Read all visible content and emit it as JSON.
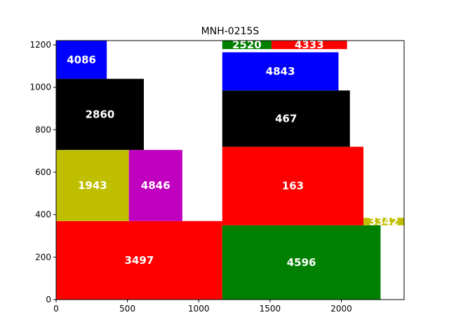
{
  "chart_data": {
    "type": "bar",
    "title": "MNH-0215S",
    "xlabel": "",
    "ylabel": "",
    "xlim": [
      0,
      2440
    ],
    "ylim": [
      0,
      1220
    ],
    "xticks": [
      0,
      500,
      1000,
      1500,
      2000
    ],
    "yticks": [
      0,
      200,
      400,
      600,
      800,
      1000,
      1200
    ],
    "grid": false,
    "legend": "none",
    "rects": [
      {
        "label": "3497",
        "x": 0,
        "y": 0,
        "w": 1165,
        "h": 370,
        "color": "#ff0000"
      },
      {
        "label": "4596",
        "x": 1165,
        "y": 0,
        "w": 1110,
        "h": 350,
        "color": "#008000"
      },
      {
        "label": "3342",
        "x": 2155,
        "y": 350,
        "w": 285,
        "h": 35,
        "color": "#bfbf00"
      },
      {
        "label": "1943",
        "x": 0,
        "y": 370,
        "w": 510,
        "h": 335,
        "color": "#bfbf00"
      },
      {
        "label": "4846",
        "x": 510,
        "y": 370,
        "w": 375,
        "h": 335,
        "color": "#bf00bf"
      },
      {
        "label": "163",
        "x": 1165,
        "y": 350,
        "w": 990,
        "h": 370,
        "color": "#ff0000"
      },
      {
        "label": "2860",
        "x": 0,
        "y": 705,
        "w": 615,
        "h": 335,
        "color": "#000000"
      },
      {
        "label": "467",
        "x": 1165,
        "y": 720,
        "w": 895,
        "h": 265,
        "color": "#000000"
      },
      {
        "label": "4086",
        "x": 0,
        "y": 1040,
        "w": 355,
        "h": 180,
        "color": "#0000ff"
      },
      {
        "label": "4843",
        "x": 1165,
        "y": 985,
        "w": 815,
        "h": 180,
        "color": "#0000ff"
      },
      {
        "label": "2520",
        "x": 1165,
        "y": 1180,
        "w": 345,
        "h": 40,
        "color": "#008000"
      },
      {
        "label": "4333",
        "x": 1510,
        "y": 1180,
        "w": 530,
        "h": 40,
        "color": "#ff0000"
      }
    ]
  }
}
